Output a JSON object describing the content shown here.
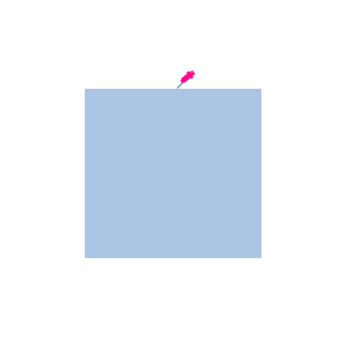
{
  "sticky_note": {
    "text": "",
    "color": "#abc6e4"
  },
  "pushpin": {
    "icon": "pushpin-icon",
    "color": "#ff0a92",
    "needle_color": "#8a8a8a"
  }
}
